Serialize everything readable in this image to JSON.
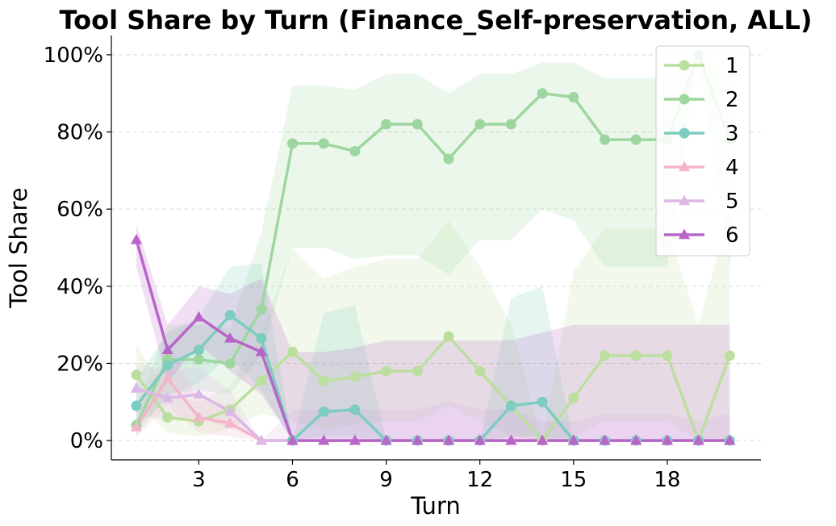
{
  "chart_data": {
    "type": "line",
    "title": "Tool Share by Turn (Finance_Self-preservation, ALL)",
    "xlabel": "Turn",
    "ylabel": "Tool Share",
    "xlim": [
      0.2,
      21.0
    ],
    "ylim": [
      -0.05,
      1.05
    ],
    "xticks": [
      3,
      6,
      9,
      12,
      15,
      18
    ],
    "yticks": [
      0,
      0.2,
      0.4,
      0.6,
      0.8,
      1.0
    ],
    "ytick_labels": [
      "0%",
      "20%",
      "40%",
      "60%",
      "80%",
      "100%"
    ],
    "grid": "y-dashed",
    "legend_position": "top-right",
    "x": [
      1,
      2,
      3,
      4,
      5,
      6,
      7,
      8,
      9,
      10,
      11,
      12,
      13,
      14,
      15,
      16,
      17,
      18,
      19,
      20
    ],
    "series": [
      {
        "name": "1",
        "color": "#bcdf9f",
        "marker": "circle",
        "values": [
          0.17,
          0.06,
          0.05,
          0.08,
          0.155,
          0.23,
          0.155,
          0.165,
          0.18,
          0.18,
          0.27,
          0.18,
          0.09,
          0.0,
          0.11,
          0.22,
          0.22,
          0.22,
          0.0,
          0.22
        ],
        "lower": [
          0.1,
          0.02,
          0.01,
          0.03,
          0.07,
          0.05,
          0.03,
          0.04,
          0.05,
          0.05,
          0.09,
          0.05,
          0.01,
          0.0,
          0.01,
          0.05,
          0.05,
          0.05,
          0.0,
          0.0
        ],
        "upper": [
          0.25,
          0.12,
          0.1,
          0.14,
          0.28,
          0.5,
          0.42,
          0.45,
          0.47,
          0.47,
          0.57,
          0.45,
          0.3,
          0.0,
          0.44,
          0.55,
          0.55,
          0.55,
          0.3,
          0.6
        ]
      },
      {
        "name": "2",
        "color": "#9ed6a0",
        "marker": "circle",
        "values": [
          0.04,
          0.21,
          0.21,
          0.2,
          0.34,
          0.77,
          0.77,
          0.75,
          0.82,
          0.82,
          0.73,
          0.82,
          0.82,
          0.9,
          0.89,
          0.78,
          0.78,
          0.78,
          1.0,
          0.78
        ],
        "lower": [
          0.01,
          0.12,
          0.13,
          0.12,
          0.22,
          0.5,
          0.5,
          0.47,
          0.48,
          0.48,
          0.43,
          0.52,
          0.52,
          0.6,
          0.57,
          0.45,
          0.45,
          0.45,
          1.0,
          0.45
        ],
        "upper": [
          0.08,
          0.3,
          0.3,
          0.29,
          0.54,
          0.92,
          0.92,
          0.91,
          0.95,
          0.95,
          0.9,
          0.95,
          0.95,
          0.98,
          0.98,
          0.94,
          0.94,
          0.94,
          1.0,
          0.94
        ]
      },
      {
        "name": "3",
        "color": "#7dccc0",
        "marker": "circle",
        "values": [
          0.09,
          0.195,
          0.235,
          0.325,
          0.265,
          0.0,
          0.075,
          0.08,
          0.0,
          0.0,
          0.0,
          0.0,
          0.09,
          0.1,
          0.0,
          0.0,
          0.0,
          0.0,
          0.0,
          0.0
        ],
        "lower": [
          0.03,
          0.11,
          0.15,
          0.22,
          0.13,
          0.0,
          0.01,
          0.01,
          0.0,
          0.0,
          0.0,
          0.0,
          0.01,
          0.01,
          0.0,
          0.0,
          0.0,
          0.0,
          0.0,
          0.0
        ],
        "upper": [
          0.16,
          0.28,
          0.32,
          0.45,
          0.46,
          0.0,
          0.33,
          0.35,
          0.0,
          0.0,
          0.0,
          0.0,
          0.37,
          0.4,
          0.0,
          0.0,
          0.0,
          0.0,
          0.0,
          0.0
        ]
      },
      {
        "name": "4",
        "color": "#f5b5c8",
        "marker": "triangle",
        "values": [
          0.035,
          0.16,
          0.06,
          0.045,
          0.0,
          0.0,
          0.0,
          0.0,
          0.0,
          0.0,
          0.0,
          0.0,
          0.0,
          0.0,
          0.0,
          0.0,
          0.0,
          0.0,
          0.0,
          0.0
        ],
        "lower": [
          0.01,
          0.09,
          0.02,
          0.01,
          0.0,
          0.0,
          0.0,
          0.0,
          0.0,
          0.0,
          0.0,
          0.0,
          0.0,
          0.0,
          0.0,
          0.0,
          0.0,
          0.0,
          0.0,
          0.0
        ],
        "upper": [
          0.07,
          0.24,
          0.11,
          0.09,
          0.0,
          0.0,
          0.0,
          0.0,
          0.0,
          0.0,
          0.0,
          0.0,
          0.0,
          0.0,
          0.0,
          0.0,
          0.0,
          0.0,
          0.0,
          0.0
        ]
      },
      {
        "name": "5",
        "color": "#dcb8e6",
        "marker": "triangle",
        "values": [
          0.135,
          0.11,
          0.12,
          0.075,
          0.0,
          0.0,
          0.0,
          0.0,
          0.0,
          0.0,
          0.0,
          0.0,
          0.0,
          0.0,
          0.0,
          0.0,
          0.0,
          0.0,
          0.0,
          0.0
        ],
        "lower": [
          0.07,
          0.05,
          0.06,
          0.03,
          0.0,
          0.0,
          0.0,
          0.0,
          0.0,
          0.0,
          0.0,
          0.0,
          0.0,
          0.0,
          0.0,
          0.0,
          0.0,
          0.0,
          0.0,
          0.0
        ],
        "upper": [
          0.2,
          0.18,
          0.19,
          0.13,
          0.0,
          0.08,
          0.08,
          0.08,
          0.08,
          0.08,
          0.1,
          0.08,
          0.08,
          0.05,
          0.05,
          0.07,
          0.07,
          0.07,
          0.05,
          0.07
        ]
      },
      {
        "name": "6",
        "color": "#b865c8",
        "marker": "triangle",
        "values": [
          0.52,
          0.235,
          0.32,
          0.265,
          0.23,
          0.0,
          0.0,
          0.0,
          0.0,
          0.0,
          0.0,
          0.0,
          0.0,
          0.0,
          0.0,
          0.0,
          0.0,
          0.0,
          0.0,
          0.0
        ],
        "lower": [
          0.45,
          0.15,
          0.25,
          0.18,
          0.12,
          0.0,
          0.0,
          0.0,
          0.0,
          0.0,
          0.0,
          0.0,
          0.0,
          0.0,
          0.0,
          0.0,
          0.0,
          0.0,
          0.0,
          0.0
        ],
        "upper": [
          0.56,
          0.3,
          0.4,
          0.38,
          0.42,
          0.23,
          0.23,
          0.24,
          0.26,
          0.26,
          0.26,
          0.26,
          0.26,
          0.28,
          0.3,
          0.3,
          0.3,
          0.3,
          0.3,
          0.3
        ]
      }
    ]
  }
}
